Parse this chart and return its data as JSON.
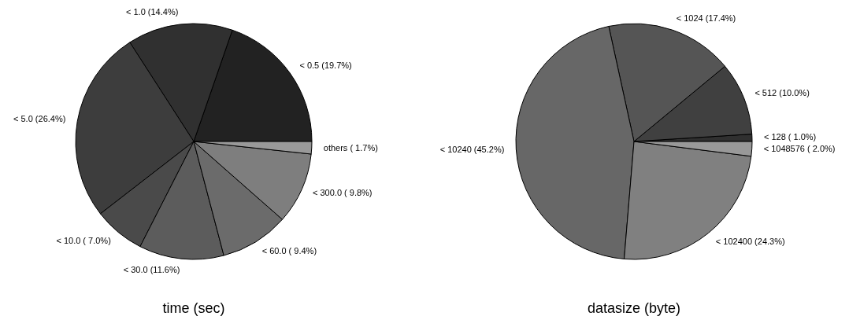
{
  "chart_data": [
    {
      "type": "pie",
      "title": "time (sec)",
      "categories": [
        "< 0.5 (19.7%)",
        "< 1.0 (14.4%)",
        "< 5.0 (26.4%)",
        "< 10.0 ( 7.0%)",
        "< 30.0 (11.6%)",
        "< 60.0 ( 9.4%)",
        "< 300.0 ( 9.8%)",
        "others ( 1.7%)"
      ],
      "values": [
        19.7,
        14.4,
        26.4,
        7.0,
        11.6,
        9.4,
        9.8,
        1.7
      ],
      "colors": [
        "#222222",
        "#303030",
        "#3d3d3d",
        "#4a4a4a",
        "#5c5c5c",
        "#6b6b6b",
        "#7e7e7e",
        "#999999"
      ]
    },
    {
      "type": "pie",
      "title": "datasize (byte)",
      "categories": [
        "< 128 ( 1.0%)",
        "< 512 (10.0%)",
        "< 1024 (17.4%)",
        "< 10240 (45.2%)",
        "< 102400 (24.3%)",
        "< 1048576 ( 2.0%)"
      ],
      "values": [
        1.0,
        10.0,
        17.4,
        45.2,
        24.3,
        2.0
      ],
      "colors": [
        "#303030",
        "#404040",
        "#555555",
        "#676767",
        "#808080",
        "#999999"
      ]
    }
  ]
}
